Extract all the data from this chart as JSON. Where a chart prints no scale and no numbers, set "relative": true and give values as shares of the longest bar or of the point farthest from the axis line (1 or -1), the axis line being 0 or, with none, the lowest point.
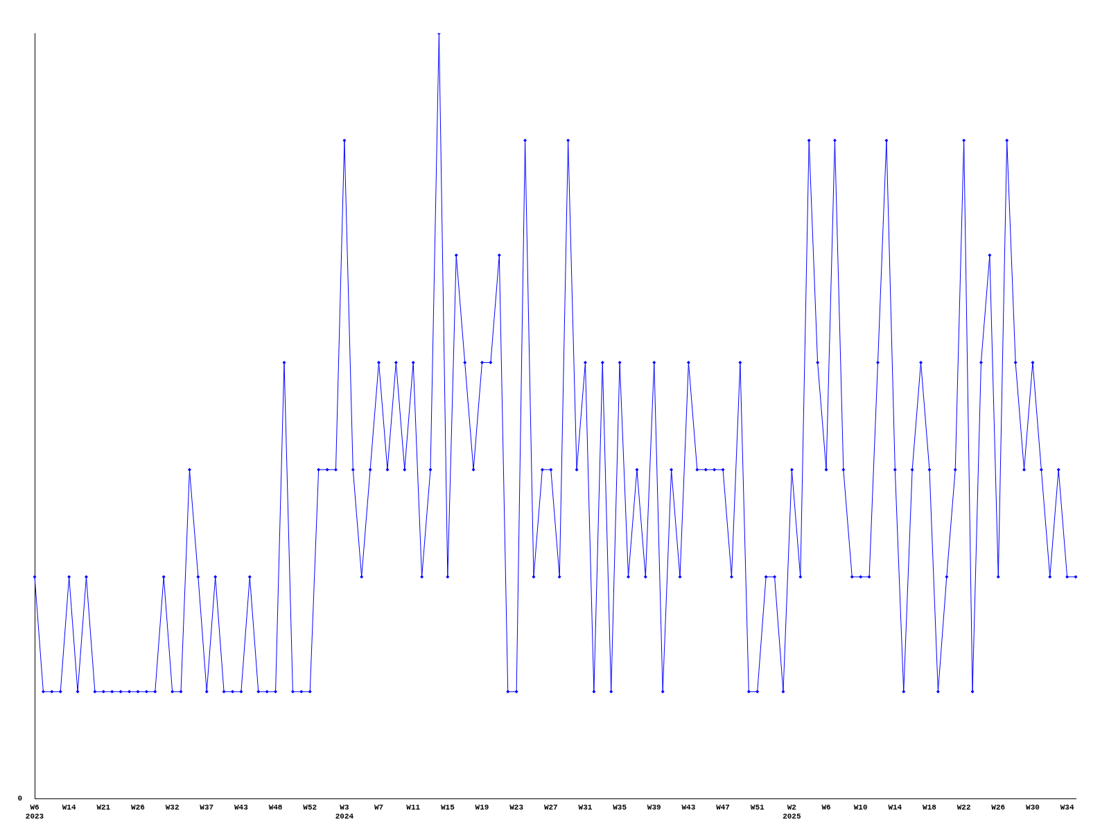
{
  "chart_data": {
    "type": "line",
    "relative": true,
    "marker": "diamond",
    "categories": [
      "W6\n2023",
      null,
      null,
      null,
      "W14",
      null,
      null,
      null,
      "W21",
      null,
      null,
      null,
      "W26",
      null,
      null,
      null,
      "W32",
      null,
      null,
      null,
      "W37",
      null,
      null,
      null,
      "W43",
      null,
      null,
      null,
      "W48",
      null,
      null,
      null,
      "W52",
      null,
      null,
      null,
      "W3\n2024",
      null,
      null,
      null,
      "W7",
      null,
      null,
      null,
      "W11",
      null,
      null,
      null,
      "W15",
      null,
      null,
      null,
      "W19",
      null,
      null,
      null,
      "W23",
      null,
      null,
      null,
      "W27",
      null,
      null,
      null,
      "W31",
      null,
      null,
      null,
      "W35",
      null,
      null,
      null,
      "W39",
      null,
      null,
      null,
      "W43",
      null,
      null,
      null,
      "W47",
      null,
      null,
      null,
      "W51",
      null,
      null,
      null,
      "W2\n2025",
      null,
      null,
      null,
      "W6",
      null,
      null,
      null,
      "W10",
      null,
      null,
      null,
      "W14",
      null,
      null,
      null,
      "W18",
      null,
      null,
      null,
      "W22",
      null,
      null,
      null,
      "W26",
      null,
      null,
      null,
      "W30",
      null,
      null,
      null,
      "W34",
      null
    ],
    "series": [
      {
        "color": "#0000ff",
        "values": [
          0.29,
          0.14,
          0.14,
          0.14,
          0.29,
          0.14,
          0.29,
          0.14,
          0.14,
          0.14,
          0.14,
          0.14,
          0.14,
          0.14,
          0.14,
          0.29,
          0.14,
          0.14,
          0.43,
          0.29,
          0.14,
          0.29,
          0.14,
          0.14,
          0.14,
          0.29,
          0.14,
          0.14,
          0.14,
          0.57,
          0.14,
          0.14,
          0.14,
          0.43,
          0.43,
          0.43,
          0.86,
          0.43,
          0.29,
          0.43,
          0.57,
          0.43,
          0.57,
          0.43,
          0.57,
          0.29,
          0.43,
          1,
          0.29,
          0.71,
          0.57,
          0.43,
          0.57,
          0.57,
          0.71,
          0.14,
          0.14,
          0.86,
          0.29,
          0.43,
          0.43,
          0.29,
          0.86,
          0.43,
          0.57,
          0.14,
          0.57,
          0.14,
          0.57,
          0.29,
          0.43,
          0.29,
          0.57,
          0.14,
          0.43,
          0.29,
          0.57,
          0.43,
          0.43,
          0.43,
          0.43,
          0.29,
          0.57,
          0.14,
          0.14,
          0.29,
          0.29,
          0.14,
          0.43,
          0.29,
          0.86,
          0.57,
          0.43,
          0.86,
          0.43,
          0.29,
          0.29,
          0.29,
          0.57,
          0.86,
          0.43,
          0.14,
          0.43,
          0.57,
          0.43,
          0.14,
          0.29,
          0.43,
          0.86,
          0.14,
          0.57,
          0.71,
          0.29,
          0.86,
          0.57,
          0.43,
          0.57,
          0.43,
          0.29,
          0.43,
          0.29,
          0.29
        ]
      }
    ],
    "annotations": [
      "0"
    ]
  }
}
